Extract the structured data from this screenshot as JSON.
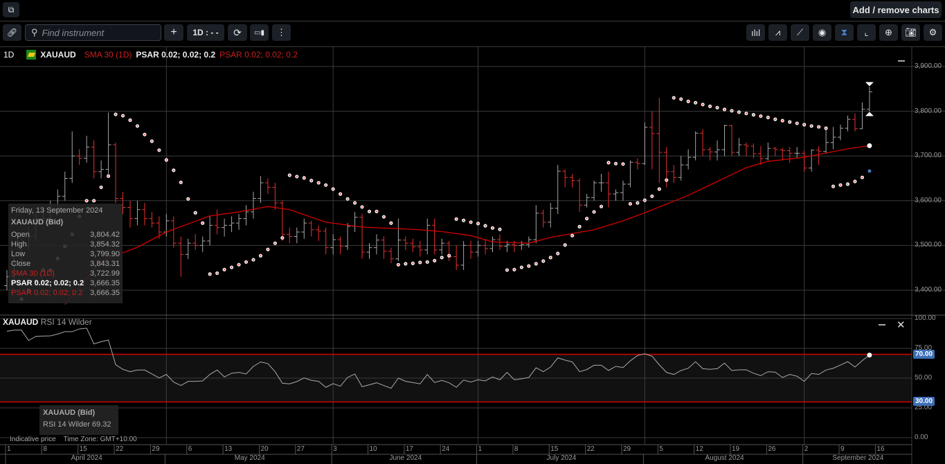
{
  "topbar": {
    "add_remove_label": "Add / remove charts"
  },
  "toolbar": {
    "search_placeholder": "Find instrument",
    "interval_label": "1D : - -",
    "right_icons": [
      "bar-chart-type-icon",
      "indicators-icon",
      "draw-line-icon",
      "visibility-eye-icon",
      "crosshair-marker-icon",
      "curve-icon",
      "zoom-in-icon",
      "camera-icon",
      "gear-icon"
    ]
  },
  "legend": {
    "interval": "1D",
    "symbol": "XAUAUD",
    "sma": "SMA 30 (1D)",
    "psar1": "PSAR 0.02; 0.02; 0.2",
    "psar2": "PSAR 0.02; 0.02; 0.2"
  },
  "tooltip": {
    "date": "Friday, 13 September 2024",
    "title": "XAUAUD (Bid)",
    "rows": [
      {
        "label": "Open",
        "value": "3,804.42"
      },
      {
        "label": "High",
        "value": "3,854.32"
      },
      {
        "label": "Low",
        "value": "3,799.90"
      },
      {
        "label": "Close",
        "value": "3,843.31"
      },
      {
        "label": "SMA 30 (1D)",
        "value": "3,722.99"
      },
      {
        "label": "PSAR 0.02; 0.02; 0.2",
        "value": "3,666.35"
      },
      {
        "label": "PSAR 0.02; 0.02; 0.2",
        "value": "3,666.35"
      }
    ]
  },
  "rsi": {
    "symbol": "XAUAUD",
    "label": "RSI 14 Wilder",
    "tooltip_title": "XAUAUD (Bid)",
    "tooltip_value": "RSI 14 Wilder 69.32",
    "axis": [
      "100.00",
      "75.00",
      "50.00",
      "25.00",
      "0.00"
    ],
    "overbought": "70.00",
    "oversold": "30.00"
  },
  "footer": {
    "indicative": "Indicative price",
    "timezone": "Time Zone: GMT+10:00"
  },
  "colors": {
    "up": "#a8a8a8",
    "down": "#e8312f",
    "sma": "#d40000",
    "rsi_band": "#d40000",
    "badge": "#3d6fb6"
  },
  "chart_data": {
    "type": "ohlc",
    "price_axis": [
      "3,900.00",
      "3,800.00",
      "3,700.00",
      "3,600.00",
      "3,500.00",
      "3,400.00"
    ],
    "ylim": [
      3330,
      3950
    ],
    "week_labels": [
      "1",
      "8",
      "15",
      "22",
      "29",
      "6",
      "13",
      "20",
      "27",
      "3",
      "10",
      "17",
      "24",
      "1",
      "8",
      "15",
      "22",
      "29",
      "5",
      "12",
      "19",
      "26",
      "2",
      "9",
      "16"
    ],
    "months": [
      {
        "label": "April 2024",
        "from": 0,
        "to": 22
      },
      {
        "label": "May 2024",
        "from": 22,
        "to": 45
      },
      {
        "label": "June 2024",
        "from": 45,
        "to": 65
      },
      {
        "label": "July 2024",
        "from": 65,
        "to": 88
      },
      {
        "label": "August 2024",
        "from": 88,
        "to": 110
      },
      {
        "label": "September 2024",
        "from": 110,
        "to": 125
      }
    ],
    "close": [
      3430,
      3460,
      3500,
      3520,
      3560,
      3560,
      3580,
      3610,
      3650,
      3700,
      3695,
      3720,
      3665,
      3670,
      3725,
      3605,
      3585,
      3560,
      3580,
      3560,
      3550,
      3530,
      3555,
      3505,
      3480,
      3505,
      3500,
      3510,
      3545,
      3540,
      3545,
      3550,
      3560,
      3575,
      3605,
      3640,
      3630,
      3595,
      3525,
      3520,
      3530,
      3550,
      3535,
      3532,
      3495,
      3513,
      3498,
      3543,
      3563,
      3485,
      3495,
      3512,
      3487,
      3470,
      3512,
      3505,
      3497,
      3490,
      3545,
      3490,
      3505,
      3475,
      3456,
      3500,
      3485,
      3500,
      3493,
      3513,
      3498,
      3502,
      3500,
      3502,
      3513,
      3572,
      3552,
      3583,
      3666,
      3652,
      3645,
      3590,
      3607,
      3640,
      3640,
      3615,
      3618,
      3637,
      3686,
      3683,
      3764,
      3750,
      3708,
      3665,
      3652,
      3680,
      3697,
      3751,
      3714,
      3709,
      3714,
      3768,
      3708,
      3725,
      3722,
      3705,
      3694,
      3717,
      3714,
      3712,
      3706,
      3706,
      3673,
      3713,
      3710,
      3730,
      3742,
      3762,
      3782,
      3761,
      3804.42,
      3843.31
    ],
    "high": [
      3445,
      3475,
      3515,
      3540,
      3575,
      3580,
      3600,
      3625,
      3665,
      3755,
      3715,
      3745,
      3735,
      3690,
      3797,
      3730,
      3620,
      3600,
      3600,
      3595,
      3575,
      3565,
      3570,
      3565,
      3520,
      3515,
      3525,
      3520,
      3565,
      3580,
      3560,
      3565,
      3570,
      3590,
      3620,
      3655,
      3650,
      3640,
      3600,
      3540,
      3540,
      3560,
      3555,
      3545,
      3540,
      3525,
      3520,
      3550,
      3575,
      3570,
      3505,
      3525,
      3520,
      3495,
      3560,
      3520,
      3515,
      3510,
      3560,
      3560,
      3515,
      3510,
      3500,
      3510,
      3510,
      3510,
      3515,
      3520,
      3525,
      3510,
      3510,
      3510,
      3520,
      3590,
      3580,
      3595,
      3680,
      3670,
      3660,
      3650,
      3615,
      3645,
      3660,
      3665,
      3625,
      3645,
      3690,
      3695,
      3775,
      3800,
      3830,
      3720,
      3680,
      3700,
      3715,
      3755,
      3760,
      3720,
      3735,
      3770,
      3770,
      3740,
      3730,
      3728,
      3722,
      3730,
      3720,
      3718,
      3720,
      3720,
      3712,
      3715,
      3722,
      3760,
      3765,
      3770,
      3790,
      3795,
      3820,
      3854.32
    ],
    "low": [
      3400,
      3420,
      3450,
      3490,
      3510,
      3545,
      3550,
      3570,
      3600,
      3640,
      3680,
      3685,
      3650,
      3650,
      3660,
      3595,
      3570,
      3540,
      3545,
      3545,
      3540,
      3515,
      3520,
      3495,
      3430,
      3470,
      3490,
      3485,
      3500,
      3525,
      3520,
      3530,
      3535,
      3545,
      3560,
      3595,
      3615,
      3580,
      3510,
      3505,
      3505,
      3515,
      3520,
      3510,
      3480,
      3480,
      3480,
      3490,
      3530,
      3470,
      3470,
      3480,
      3470,
      3460,
      3465,
      3490,
      3485,
      3475,
      3480,
      3480,
      3480,
      3465,
      3445,
      3445,
      3470,
      3475,
      3480,
      3485,
      3490,
      3485,
      3485,
      3490,
      3495,
      3505,
      3540,
      3540,
      3570,
      3630,
      3630,
      3575,
      3585,
      3600,
      3620,
      3585,
      3600,
      3600,
      3630,
      3670,
      3680,
      3670,
      3640,
      3630,
      3640,
      3645,
      3670,
      3690,
      3700,
      3690,
      3690,
      3700,
      3700,
      3700,
      3700,
      3695,
      3680,
      3690,
      3700,
      3690,
      3685,
      3695,
      3665,
      3665,
      3680,
      3705,
      3715,
      3735,
      3755,
      3755,
      3760,
      3799.9
    ],
    "first_open": 3410,
    "sma30": [
      [
        8,
        3368
      ],
      [
        13,
        3465
      ],
      [
        18,
        3496
      ],
      [
        22,
        3530
      ],
      [
        28,
        3566
      ],
      [
        32,
        3575
      ],
      [
        36,
        3587
      ],
      [
        39,
        3580
      ],
      [
        44,
        3552
      ],
      [
        49,
        3541
      ],
      [
        56,
        3536
      ],
      [
        60,
        3531
      ],
      [
        64,
        3522
      ],
      [
        67,
        3508
      ],
      [
        72,
        3505
      ],
      [
        75,
        3518
      ],
      [
        81,
        3535
      ],
      [
        85,
        3555
      ],
      [
        88,
        3573
      ],
      [
        94,
        3612
      ],
      [
        102,
        3674
      ],
      [
        105,
        3688
      ],
      [
        110,
        3697
      ],
      [
        116,
        3716
      ],
      [
        119,
        3722.99
      ]
    ],
    "psar": [
      null,
      null,
      3380,
      3400,
      3420,
      3445,
      3445,
      3471,
      3498,
      3525,
      3565,
      3600,
      3600,
      3630,
      3655,
      3793,
      3790,
      3780,
      3767,
      3748,
      3733,
      3713,
      3691,
      3668,
      3641,
      3604,
      3573,
      3550,
      3436,
      3438,
      3446,
      3451,
      3457,
      3463,
      3468,
      3477,
      3491,
      3505,
      3517,
      3657,
      3654,
      3651,
      3645,
      3640,
      3635,
      3626,
      3615,
      3604,
      3595,
      3586,
      3576,
      3576,
      3564,
      3550,
      3457,
      3459,
      3460,
      3462,
      3463,
      3466,
      3473,
      3477,
      3559,
      3556,
      3552,
      3549,
      3544,
      3539,
      3536,
      3445,
      3446,
      3451,
      3454,
      3459,
      3465,
      3473,
      3482,
      3501,
      3522,
      3542,
      3560,
      3575,
      3587,
      3685,
      3683,
      3682,
      3593,
      3595,
      3601,
      3610,
      3626,
      3646,
      3830,
      3827,
      3822,
      3819,
      3815,
      3811,
      3808,
      3804,
      3801,
      3798,
      3795,
      3792,
      3789,
      3786,
      3782,
      3779,
      3776,
      3773,
      3770,
      3767,
      3765,
      3762,
      3632,
      3635,
      3637,
      3643,
      3652,
      3666.35
    ],
    "rsi": [
      89.3,
      90.3,
      90.3,
      81.6,
      85.1,
      85.3,
      85.5,
      87.0,
      89.0,
      89.0,
      91.3,
      91.9,
      78.7,
      80.6,
      82.0,
      61.2,
      57.4,
      55.4,
      56.8,
      56.8,
      53.5,
      50.2,
      53.1,
      46.7,
      43.8,
      47.3,
      47.3,
      47.7,
      53.1,
      56.8,
      51.0,
      54.1,
      54.8,
      53.5,
      59.9,
      63.6,
      62.2,
      55.4,
      45.7,
      45.2,
      47.1,
      50.2,
      48.1,
      47.3,
      42.3,
      45.4,
      43.2,
      50.6,
      53.5,
      42.8,
      44.4,
      46.1,
      43.8,
      41.5,
      50.0,
      47.3,
      46.3,
      45.2,
      53.1,
      46.3,
      48.1,
      46.1,
      42.3,
      48.4,
      46.7,
      48.6,
      47.7,
      51.0,
      48.6,
      54.8,
      48.6,
      49.4,
      50.6,
      58.7,
      55.4,
      59.3,
      67.0,
      65.1,
      63.6,
      55.4,
      57.2,
      60.8,
      60.8,
      56.4,
      59.9,
      58.9,
      64.5,
      69.0,
      70.5,
      68.4,
      61.2,
      54.8,
      53.1,
      56.4,
      58.3,
      63.8,
      57.9,
      57.4,
      57.9,
      62.6,
      56.4,
      57.0,
      57.0,
      54.1,
      52.1,
      55.4,
      55.0,
      50.6,
      53.1,
      51.6,
      47.3,
      53.9,
      53.1,
      56.8,
      58.3,
      61.0,
      63.8,
      59.3,
      64.7,
      69.32
    ],
    "rsi_ylim": [
      0,
      100
    ],
    "rsi_levels": [
      70,
      30
    ]
  }
}
